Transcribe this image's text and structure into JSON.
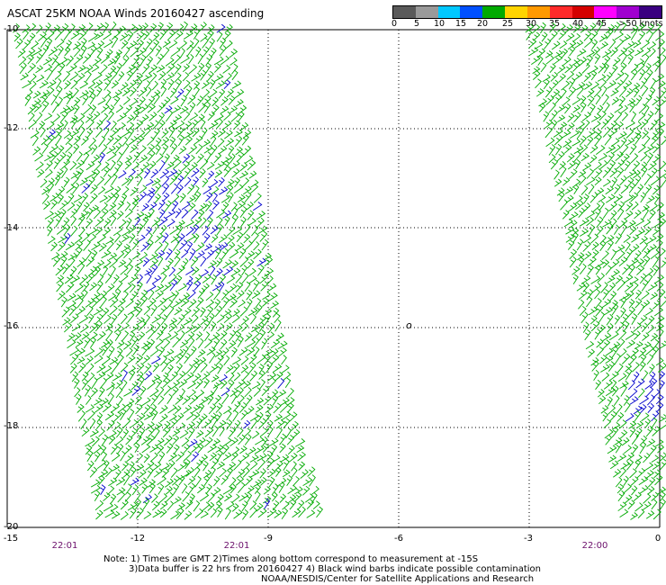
{
  "title": "ASCAT 25KM NOAA Winds 20160427 ascending",
  "legend": {
    "unit_label": ">50 knots",
    "labels": [
      "0",
      "5",
      "10",
      "15",
      "20",
      "25",
      "30",
      "35",
      "40",
      "45"
    ],
    "colors": [
      "#5a5a5a",
      "#9a9a9a",
      "#00c8ff",
      "#0050ff",
      "#00aa00",
      "#ffd400",
      "#ff9900",
      "#ff2a2a",
      "#d40000",
      "#ff00ff",
      "#a000d0",
      "#3a0080"
    ]
  },
  "axes": {
    "y_labels": [
      "-10",
      "-12",
      "-14",
      "-16",
      "-18",
      "-20"
    ],
    "x_labels": [
      "-15",
      "-12",
      "-9",
      "-6",
      "-3",
      "0"
    ]
  },
  "time_labels": [
    "22:01",
    "22:01",
    "22:00"
  ],
  "map_marker": "o",
  "notes": {
    "line1": "Note: 1) Times are GMT  2)Times along bottom correspond to measurement at -15S",
    "line2": "3)Data buffer is 22 hrs from 20160427  4) Black wind barbs indicate possible contamination",
    "line3": "NOAA/NESDIS/Center for Satellite Applications and Research"
  },
  "barb_colors": {
    "light": "#00aa00",
    "strong": "#0000cc"
  }
}
